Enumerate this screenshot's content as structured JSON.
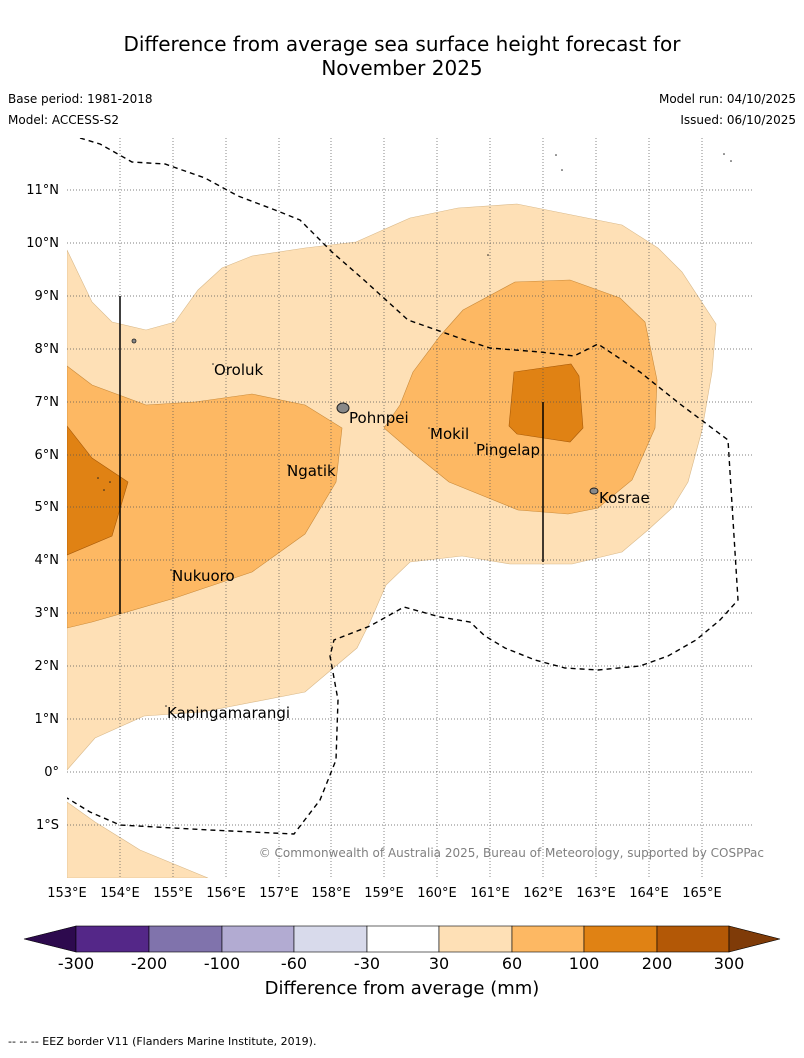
{
  "title_line1": "Difference from average sea surface height forecast for",
  "title_line2": "November 2025",
  "base_period": "Base period: 1981-2018",
  "model": "Model: ACCESS-S2",
  "model_run": "Model run: 04/10/2025",
  "issued": "Issued: 06/10/2025",
  "lat_labels": [
    "11°N",
    "10°N",
    "9°N",
    "8°N",
    "7°N",
    "6°N",
    "5°N",
    "4°N",
    "3°N",
    "2°N",
    "1°N",
    "0°",
    "1°S"
  ],
  "lon_labels": [
    "153°E",
    "154°E",
    "155°E",
    "156°E",
    "157°E",
    "158°E",
    "159°E",
    "160°E",
    "161°E",
    "162°E",
    "163°E",
    "164°E",
    "165°E"
  ],
  "places": [
    "Oroluk",
    "Pohnpei",
    "Mokil",
    "Pingelap",
    "Ngatik",
    "Kosrae",
    "Nukuoro",
    "Kapingamarangi"
  ],
  "copyright": "© Commonwealth of Australia 2025, Bureau of Meteorology, supported by COSPPac",
  "colorbar": {
    "ticks": [
      "-300",
      "-200",
      "-100",
      "-60",
      "-30",
      "30",
      "60",
      "100",
      "200",
      "300"
    ],
    "colors": [
      "#2d0a4e",
      "#542788",
      "#8073ac",
      "#b2abd2",
      "#d8daeb",
      "#ffffff",
      "#fee0b6",
      "#fdb863",
      "#e08214",
      "#b35806",
      "#7f3b08"
    ],
    "label": "Difference from average (mm)"
  },
  "footnote": "-- -- -- EEZ border V11 (Flanders Marine Institute, 2019)."
}
